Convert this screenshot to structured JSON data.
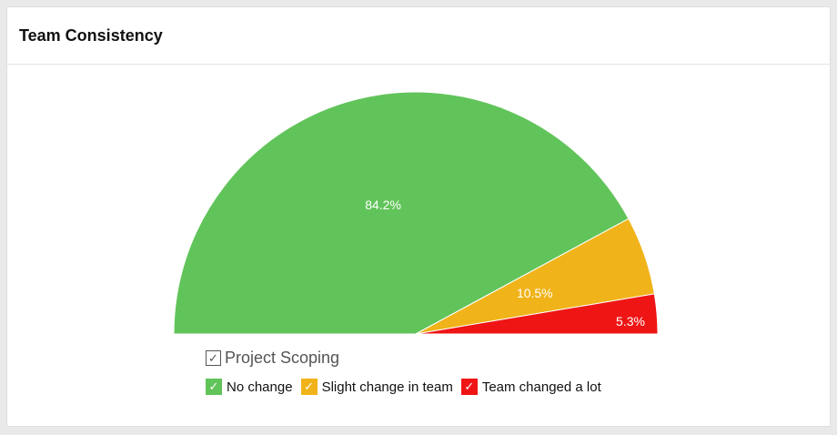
{
  "card": {
    "title": "Team Consistency"
  },
  "legend": {
    "group_label": "Project Scoping",
    "check_glyph": "✓",
    "items": [
      {
        "label": "No change",
        "color": "#61c45a"
      },
      {
        "label": "Slight change in team",
        "color": "#f0b319"
      },
      {
        "label": "Team changed a lot",
        "color": "#ef1515"
      }
    ]
  },
  "chart_data": {
    "type": "pie",
    "variant": "semicircle",
    "categories": [
      "No change",
      "Slight change in team",
      "Team changed a lot"
    ],
    "values": [
      84.2,
      10.5,
      5.3
    ],
    "data_labels": [
      "84.2%",
      "10.5%",
      "5.3%"
    ],
    "colors": [
      "#61c45a",
      "#f0b319",
      "#ef1515"
    ],
    "legend_position": "bottom-left"
  }
}
